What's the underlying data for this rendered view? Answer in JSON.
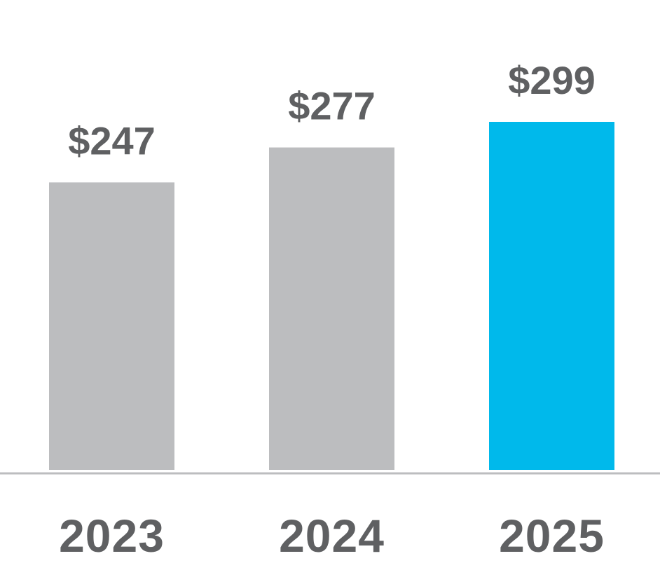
{
  "chart_data": {
    "type": "bar",
    "categories": [
      "2023",
      "2024",
      "2025"
    ],
    "values": [
      247,
      277,
      299
    ],
    "data_labels": [
      "$247",
      "$277",
      "$299"
    ],
    "title": "",
    "xlabel": "",
    "ylabel": "",
    "ylim": [
      0,
      299
    ],
    "grid": false,
    "legend": "none",
    "colors": {
      "default_bar": "#bcbdbf",
      "highlight_bar": "#00b9eb",
      "axis": "#bcbdbf",
      "text": "#5f6062"
    },
    "highlight_category": "2025"
  }
}
